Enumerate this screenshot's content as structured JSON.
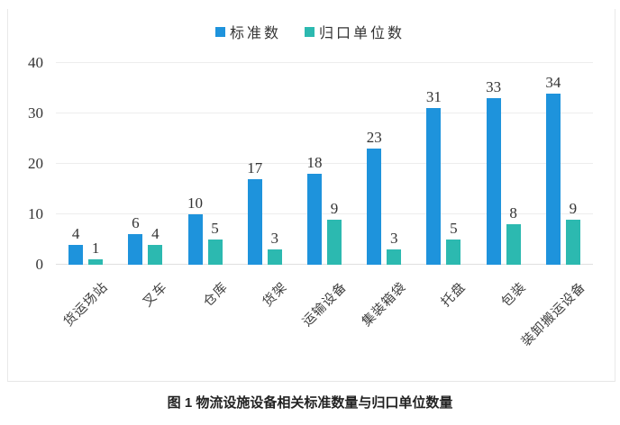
{
  "figure": {
    "caption": "图 1 物流设施设备相关标准数量与归口单位数量"
  },
  "chart_data": {
    "type": "bar",
    "categories": [
      "货运场站",
      "叉车",
      "仓库",
      "货架",
      "运输设备",
      "集装箱袋",
      "托盘",
      "包装",
      "装卸搬运设备"
    ],
    "series": [
      {
        "name": "标准数",
        "color": "#1E93DC",
        "values": [
          4,
          6,
          10,
          17,
          18,
          23,
          31,
          33,
          34
        ]
      },
      {
        "name": "归口单位数",
        "color": "#2CB9B0",
        "values": [
          1,
          4,
          5,
          3,
          9,
          3,
          5,
          8,
          9
        ]
      }
    ],
    "title": "",
    "xlabel": "",
    "ylabel": "",
    "ylim": [
      0,
      40
    ],
    "yticks": [
      0,
      10,
      20,
      30,
      40
    ],
    "grid": true,
    "legend_position": "top"
  }
}
